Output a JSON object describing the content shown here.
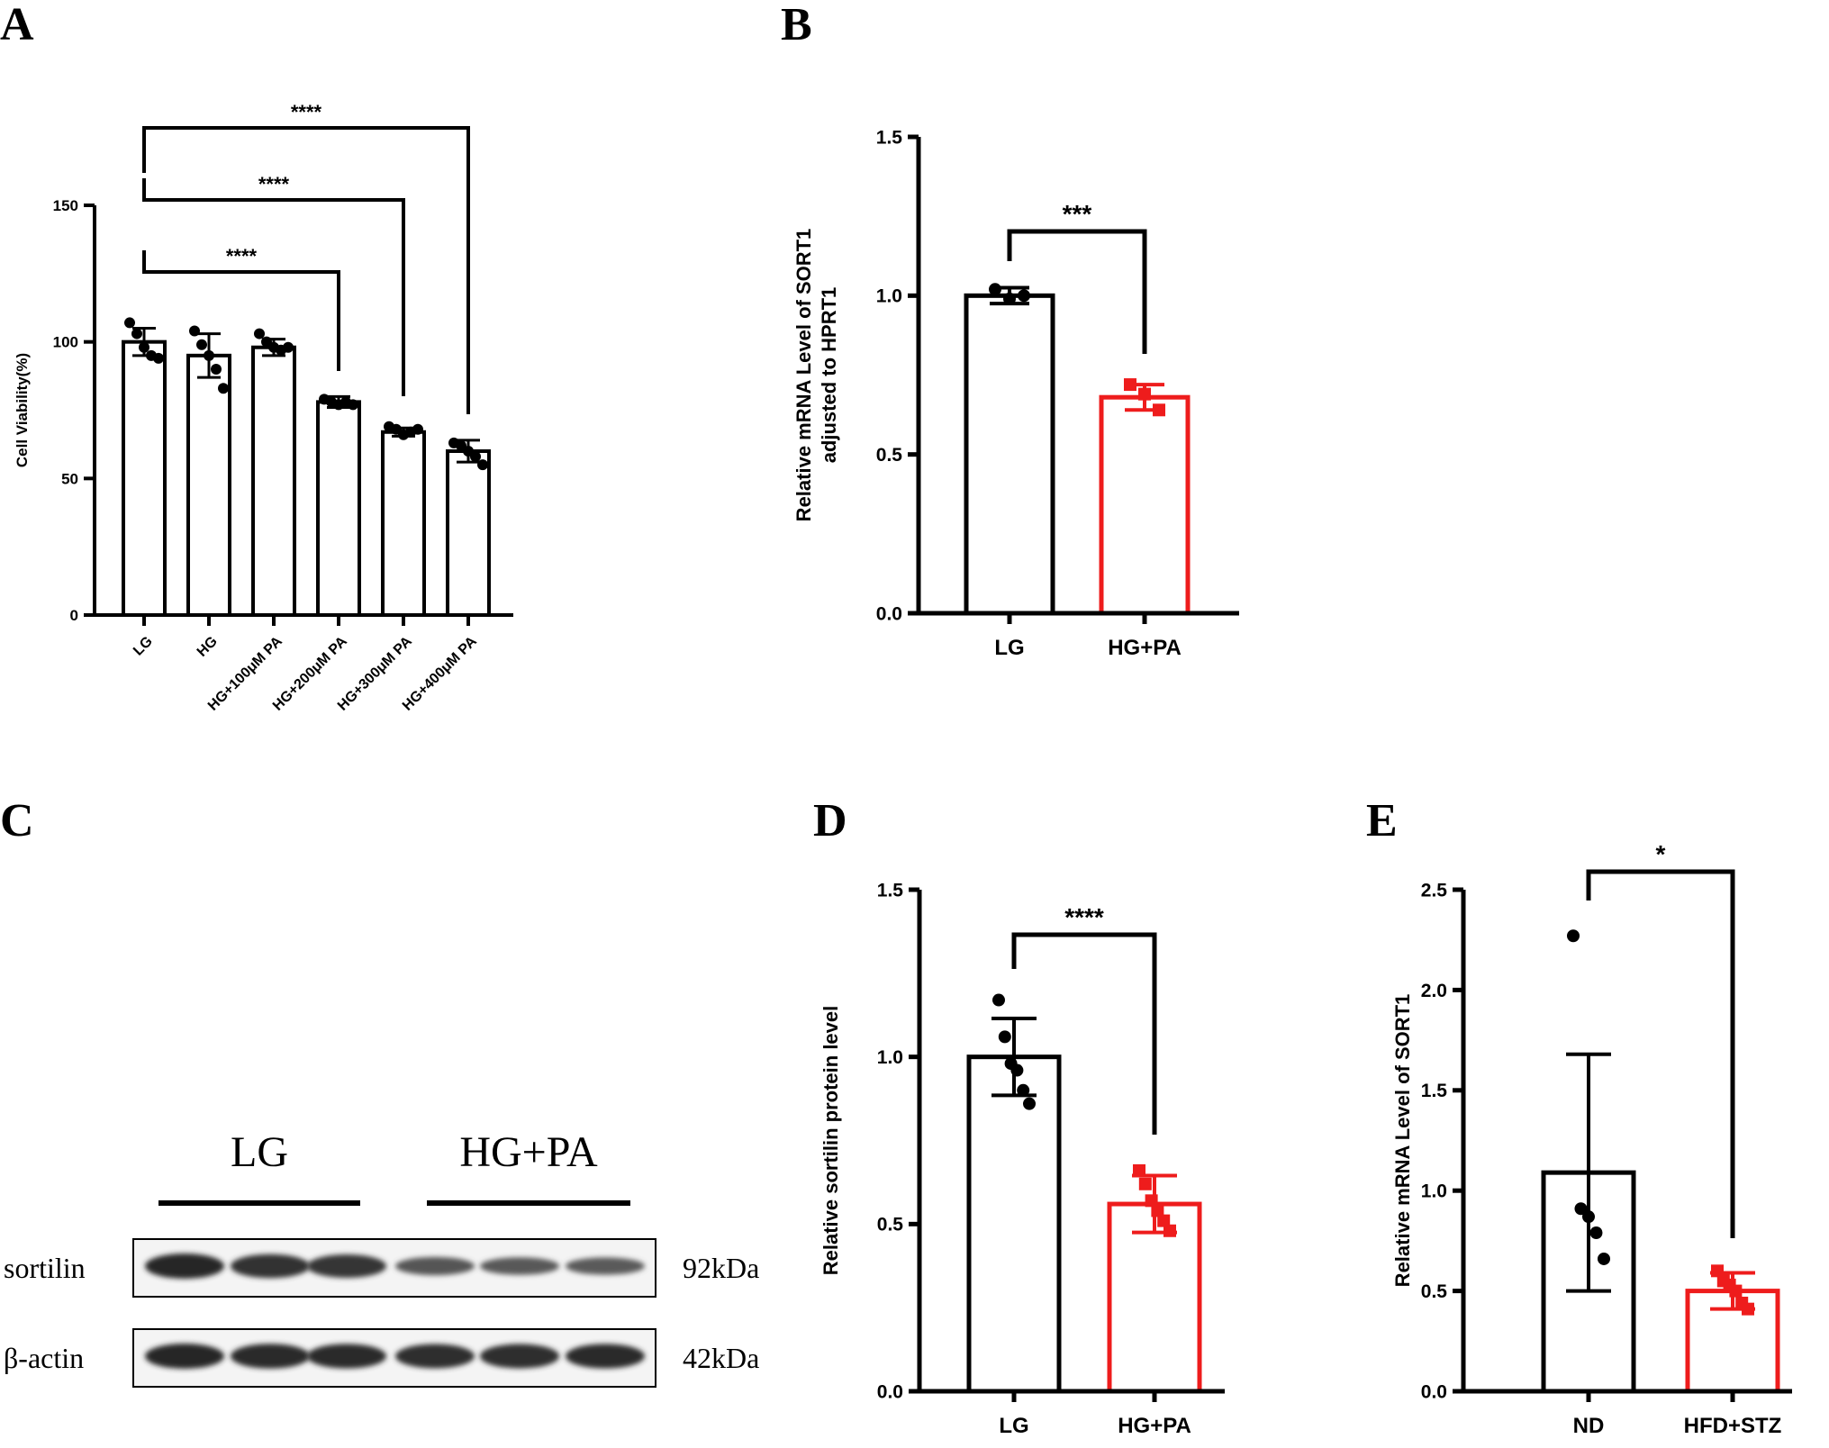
{
  "chart_data": [
    {
      "panel": "A",
      "type": "bar",
      "ylabel": "Cell Viability(%)",
      "ylim": [
        0,
        150
      ],
      "yticks": [
        0,
        50,
        100,
        150
      ],
      "categories": [
        "LG",
        "HG",
        "HG+100μM PA",
        "HG+200μM PA",
        "HG+300μM PA",
        "HG+400μM PA"
      ],
      "values": [
        100,
        95,
        98,
        78,
        67,
        60
      ],
      "errors": [
        5,
        8,
        3,
        2,
        1.5,
        4
      ],
      "points": [
        [
          107,
          103,
          98,
          95,
          94
        ],
        [
          104,
          99,
          95,
          90,
          83
        ],
        [
          103,
          100,
          98,
          97,
          98
        ],
        [
          79,
          78,
          77,
          78,
          77
        ],
        [
          69,
          68,
          66,
          67,
          68
        ],
        [
          63,
          62,
          60,
          58,
          55
        ]
      ],
      "colors": [
        "#000000",
        "#000000",
        "#000000",
        "#000000",
        "#000000",
        "#000000"
      ],
      "comparisons": [
        {
          "from": 0,
          "to": 3,
          "label": "****"
        },
        {
          "from": 0,
          "to": 4,
          "label": "****"
        },
        {
          "from": 0,
          "to": 5,
          "label": "****"
        }
      ]
    },
    {
      "panel": "B",
      "type": "bar",
      "ylabel": [
        "Relative mRNA Level of SORT1",
        "adjusted to HPRT1"
      ],
      "ylim": [
        0,
        1.5
      ],
      "yticks": [
        "0.0",
        "0.5",
        "1.0",
        "1.5"
      ],
      "categories": [
        "LG",
        "HG+PA"
      ],
      "values": [
        1.0,
        0.68
      ],
      "errors": [
        0.025,
        0.04
      ],
      "points": [
        [
          1.02,
          0.99,
          1.0
        ],
        [
          0.72,
          0.69,
          0.64
        ]
      ],
      "colors": [
        "#000000",
        "#ee1c1c"
      ],
      "comparisons": [
        {
          "from": 0,
          "to": 1,
          "label": "***"
        }
      ]
    },
    {
      "panel": "D",
      "type": "bar",
      "ylabel": "Relative sortilin protein level",
      "ylim": [
        0,
        1.5
      ],
      "yticks": [
        "0.0",
        "0.5",
        "1.0",
        "1.5"
      ],
      "categories": [
        "LG",
        "HG+PA"
      ],
      "values": [
        1.0,
        0.56
      ],
      "errors": [
        0.115,
        0.085
      ],
      "points": [
        [
          1.17,
          1.06,
          0.98,
          0.96,
          0.9,
          0.86
        ],
        [
          0.66,
          0.62,
          0.57,
          0.54,
          0.51,
          0.48
        ]
      ],
      "colors": [
        "#000000",
        "#ee1c1c"
      ],
      "comparisons": [
        {
          "from": 0,
          "to": 1,
          "label": "****"
        }
      ]
    },
    {
      "panel": "E",
      "type": "bar",
      "ylabel": "Relative mRNA Level of SORT1",
      "ylim": [
        0,
        2.5
      ],
      "yticks": [
        "0.0",
        "0.5",
        "1.0",
        "1.5",
        "2.0",
        "2.5"
      ],
      "categories": [
        "ND",
        "HFD+STZ"
      ],
      "values": [
        1.09,
        0.5
      ],
      "errors": [
        0.59,
        0.09
      ],
      "points": [
        [
          2.27,
          0.91,
          0.87,
          0.79,
          0.66
        ],
        [
          0.6,
          0.55,
          0.53,
          0.5,
          0.44,
          0.41
        ]
      ],
      "colors": [
        "#000000",
        "#ee1c1c"
      ],
      "comparisons": [
        {
          "from": 0,
          "to": 1,
          "label": "*"
        }
      ]
    }
  ],
  "blot": {
    "groups": [
      "LG",
      "HG+PA"
    ],
    "rows": [
      {
        "label": "sortilin",
        "size": "92kDa",
        "intensities": [
          1.0,
          0.9,
          0.85,
          0.45,
          0.4,
          0.38
        ]
      },
      {
        "label": "β-actin",
        "size": "42kDa",
        "intensities": [
          1.0,
          0.97,
          0.95,
          0.93,
          0.94,
          0.95
        ]
      }
    ]
  },
  "panel_letters": [
    "A",
    "B",
    "C",
    "D",
    "E"
  ]
}
